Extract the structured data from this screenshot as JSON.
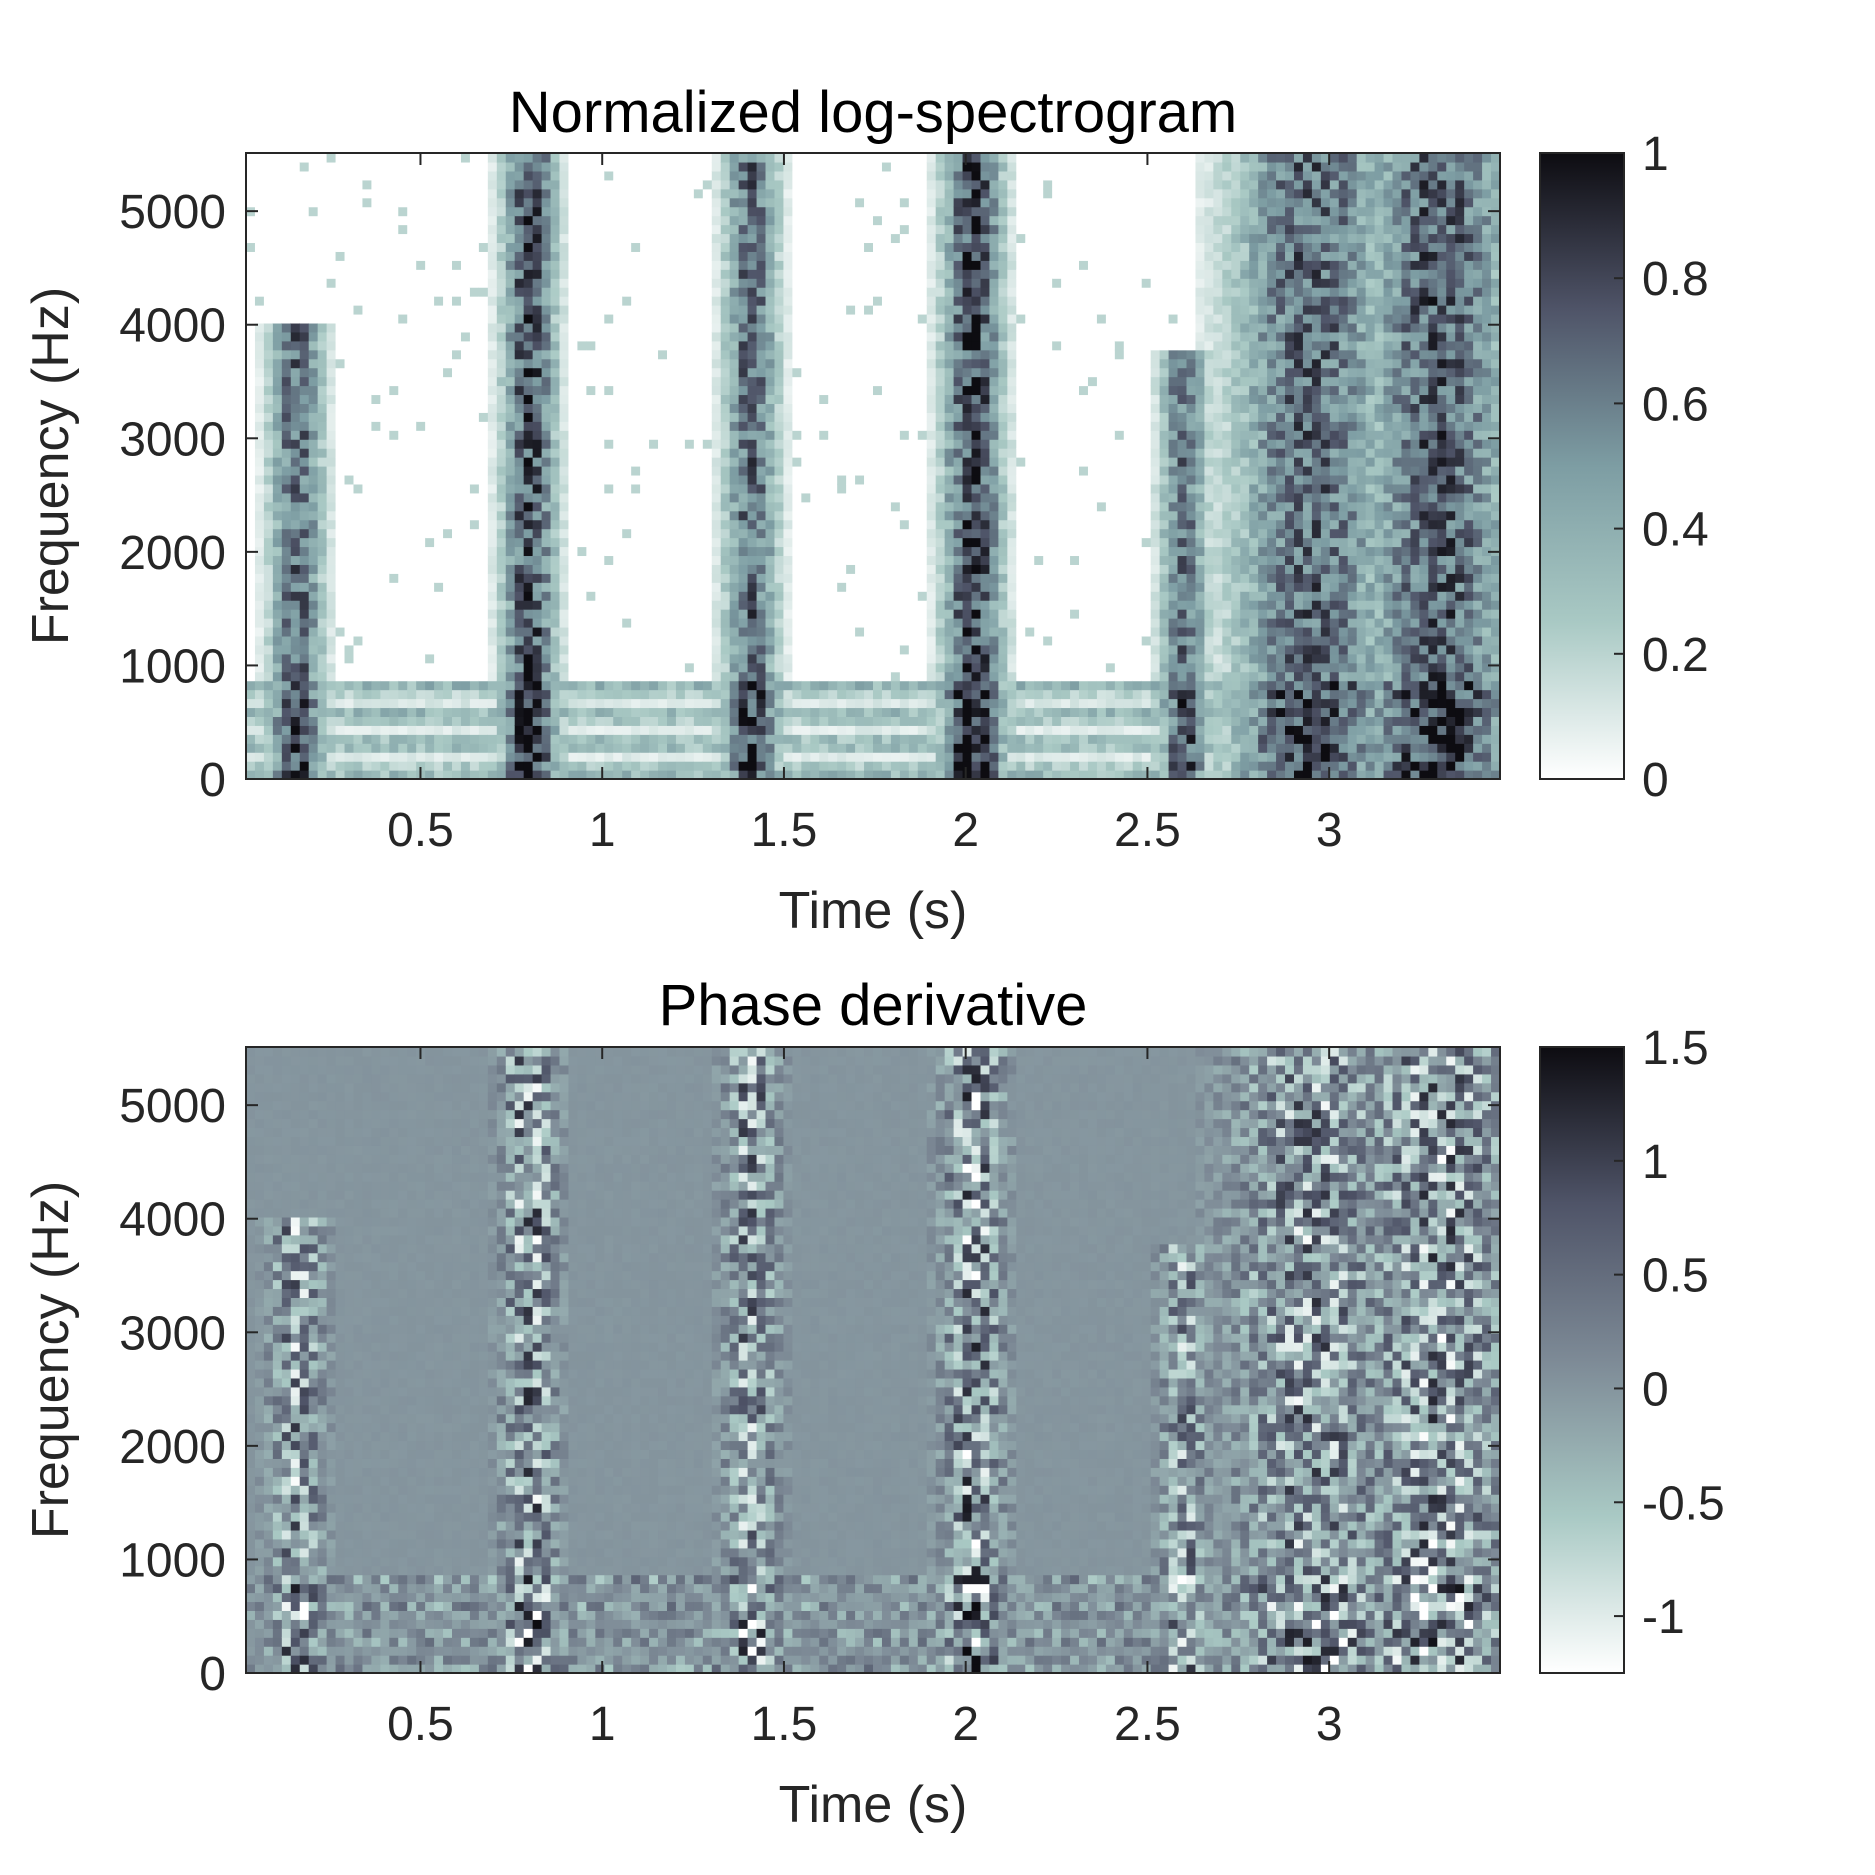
{
  "chart_data": [
    {
      "type": "heatmap",
      "title": "Normalized log-spectrogram",
      "xlabel": "Time (s)",
      "ylabel": "Frequency (Hz)",
      "xlim": [
        0.02,
        3.47
      ],
      "ylim": [
        0,
        5512
      ],
      "xticks": [
        0.5,
        1,
        1.5,
        2,
        2.5,
        3
      ],
      "xtick_labels": [
        "0.5",
        "1",
        "1.5",
        "2",
        "2.5",
        "3"
      ],
      "yticks": [
        0,
        1000,
        2000,
        3000,
        4000,
        5000
      ],
      "ytick_labels": [
        "0",
        "1000",
        "2000",
        "3000",
        "4000",
        "5000"
      ],
      "colorbar": {
        "range": [
          0,
          1
        ],
        "ticks": [
          0,
          0.2,
          0.4,
          0.6,
          0.8,
          1
        ],
        "tick_labels": [
          "0",
          "0.2",
          "0.4",
          "0.6",
          "0.8",
          "1"
        ]
      },
      "colormap": [
        "#ffffff",
        "#a9c9c4",
        "#7d9da3",
        "#4f5468",
        "#0d0c11"
      ],
      "events": [
        {
          "time": 0.16,
          "width": 0.09,
          "strength": 0.75,
          "max_freq": 4000
        },
        {
          "time": 0.8,
          "width": 0.09,
          "strength": 0.85,
          "max_freq": 5500
        },
        {
          "time": 1.41,
          "width": 0.09,
          "strength": 0.75,
          "max_freq": 5500
        },
        {
          "time": 2.02,
          "width": 0.1,
          "strength": 0.9,
          "max_freq": 5500
        },
        {
          "time": 2.6,
          "width": 0.08,
          "strength": 0.7,
          "max_freq": 3800
        },
        {
          "time": 2.95,
          "width": 0.27,
          "strength": 0.75,
          "max_freq": 5500
        },
        {
          "time": 3.3,
          "width": 0.25,
          "strength": 0.8,
          "max_freq": 5500
        }
      ]
    },
    {
      "type": "heatmap",
      "title": "Phase derivative",
      "xlabel": "Time (s)",
      "ylabel": "Frequency (Hz)",
      "xlim": [
        0.02,
        3.47
      ],
      "ylim": [
        0,
        5512
      ],
      "xticks": [
        0.5,
        1,
        1.5,
        2,
        2.5,
        3
      ],
      "xtick_labels": [
        "0.5",
        "1",
        "1.5",
        "2",
        "2.5",
        "3"
      ],
      "yticks": [
        0,
        1000,
        2000,
        3000,
        4000,
        5000
      ],
      "ytick_labels": [
        "0",
        "1000",
        "2000",
        "3000",
        "4000",
        "5000"
      ],
      "colorbar": {
        "range": [
          -1.25,
          1.5
        ],
        "ticks": [
          -1,
          -0.5,
          0,
          0.5,
          1,
          1.5
        ],
        "tick_labels": [
          "-1",
          "-0.5",
          "0",
          "0.5",
          "1",
          "1.5"
        ]
      },
      "colormap": [
        "#ffffff",
        "#a9c9c4",
        "#7d8a96",
        "#4f5468",
        "#0d0c11"
      ],
      "background_value": 0,
      "events": [
        {
          "time": 0.16,
          "width": 0.09,
          "strength": 0.75,
          "max_freq": 4000
        },
        {
          "time": 0.8,
          "width": 0.09,
          "strength": 0.85,
          "max_freq": 5500
        },
        {
          "time": 1.41,
          "width": 0.09,
          "strength": 0.75,
          "max_freq": 5500
        },
        {
          "time": 2.02,
          "width": 0.1,
          "strength": 0.9,
          "max_freq": 5500
        },
        {
          "time": 2.6,
          "width": 0.08,
          "strength": 0.7,
          "max_freq": 3800
        },
        {
          "time": 2.95,
          "width": 0.27,
          "strength": 0.75,
          "max_freq": 5500
        },
        {
          "time": 3.3,
          "width": 0.25,
          "strength": 0.8,
          "max_freq": 5500
        }
      ]
    }
  ]
}
